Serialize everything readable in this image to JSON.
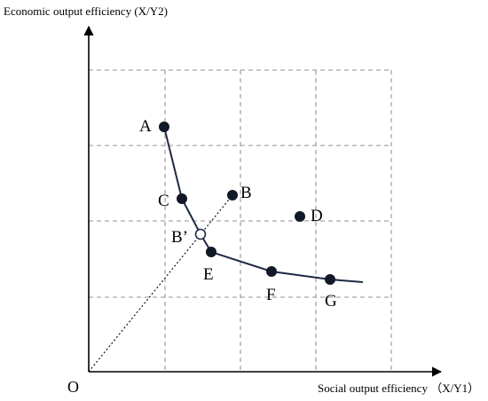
{
  "axes": {
    "y_title": "Economic output efficiency (X/Y2)",
    "x_title": "Social output efficiency （X/Y1）",
    "origin_label": "O"
  },
  "points": [
    {
      "id": "A",
      "label": "A",
      "on_frontier": true
    },
    {
      "id": "C",
      "label": "C",
      "on_frontier": true
    },
    {
      "id": "B'",
      "label": "B’",
      "on_frontier": true,
      "projection": true
    },
    {
      "id": "E",
      "label": "E",
      "on_frontier": true
    },
    {
      "id": "F",
      "label": "F",
      "on_frontier": true
    },
    {
      "id": "G",
      "label": "G",
      "on_frontier": true
    },
    {
      "id": "B",
      "label": "B",
      "on_frontier": false
    },
    {
      "id": "D",
      "label": "D",
      "on_frontier": false
    }
  ],
  "ray": {
    "from": "O",
    "through": "B'",
    "to": "B"
  },
  "colors": {
    "dots": "#111827",
    "frontier": "#1f2a44",
    "grid": "#a6a6a6",
    "axes": "#000000"
  }
}
